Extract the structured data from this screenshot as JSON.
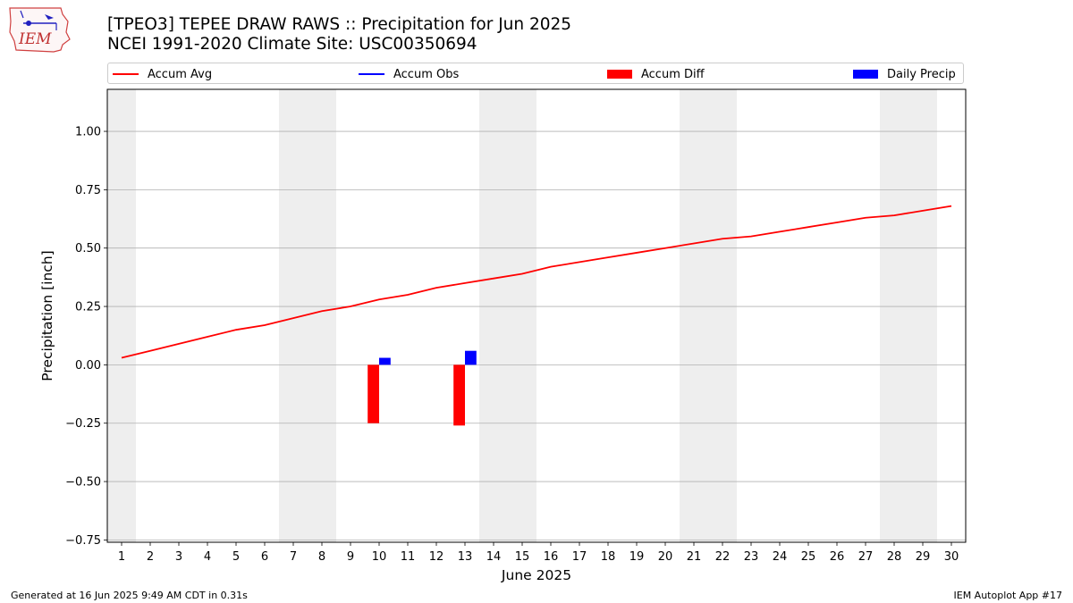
{
  "header": {
    "title": "[TPEO3] TEPEE DRAW RAWS :: Precipitation for Jun 2025",
    "subtitle": "NCEI 1991-2020 Climate Site: USC00350694"
  },
  "logo": {
    "text": "IEM",
    "icon": "iem-iowa-logo"
  },
  "legend": {
    "items": [
      {
        "label": "Accum Avg",
        "kind": "line",
        "color": "#ff0000"
      },
      {
        "label": "Accum Obs",
        "kind": "line",
        "color": "#0000ff"
      },
      {
        "label": "Accum Diff",
        "kind": "patch",
        "color": "#ff0000"
      },
      {
        "label": "Daily Precip",
        "kind": "patch",
        "color": "#0000ff"
      }
    ],
    "placement": "top"
  },
  "footer": {
    "left": "Generated at 16 Jun 2025 9:49 AM CDT in 0.31s",
    "right": "IEM Autoplot App #17"
  },
  "colors": {
    "avg": "#ff0000",
    "obs": "#0000ff",
    "diff": "#ff0000",
    "daily": "#0000ff",
    "weekend": "#eeeeee",
    "grid": "#b0b0b0"
  },
  "chart_data": {
    "type": "line",
    "title": "[TPEO3] TEPEE DRAW RAWS :: Precipitation for Jun 2025",
    "subtitle": "NCEI 1991-2020 Climate Site: USC00350694",
    "xlabel": "June 2025",
    "ylabel": "Precipitation [inch]",
    "x": [
      1,
      2,
      3,
      4,
      5,
      6,
      7,
      8,
      9,
      10,
      11,
      12,
      13,
      14,
      15,
      16,
      17,
      18,
      19,
      20,
      21,
      22,
      23,
      24,
      25,
      26,
      27,
      28,
      29,
      30
    ],
    "xlim": [
      0.5,
      30.5
    ],
    "ylim": [
      -0.76,
      1.18
    ],
    "yticks": [
      -0.75,
      -0.5,
      -0.25,
      0.0,
      0.25,
      0.5,
      0.75,
      1.0
    ],
    "ytick_labels": [
      "−0.75",
      "−0.50",
      "−0.25",
      "0.00",
      "0.25",
      "0.50",
      "0.75",
      "1.00"
    ],
    "grid": "horizontal",
    "weekend_days": [
      1,
      7,
      8,
      14,
      15,
      21,
      22,
      28,
      29
    ],
    "series": [
      {
        "name": "Accum Avg",
        "type": "line",
        "color": "#ff0000",
        "x": [
          1,
          2,
          3,
          4,
          5,
          6,
          7,
          8,
          9,
          10,
          11,
          12,
          13,
          14,
          15,
          16,
          17,
          18,
          19,
          20,
          21,
          22,
          23,
          24,
          25,
          26,
          27,
          28,
          29,
          30
        ],
        "values": [
          0.03,
          0.06,
          0.09,
          0.12,
          0.15,
          0.17,
          0.2,
          0.23,
          0.25,
          0.28,
          0.3,
          0.33,
          0.35,
          0.37,
          0.39,
          0.42,
          0.44,
          0.46,
          0.48,
          0.5,
          0.52,
          0.54,
          0.55,
          0.57,
          0.59,
          0.61,
          0.63,
          0.64,
          0.66,
          0.68
        ]
      },
      {
        "name": "Accum Diff",
        "type": "bar",
        "color": "#ff0000",
        "x": [
          10,
          13
        ],
        "values": [
          -0.25,
          -0.26
        ]
      },
      {
        "name": "Daily Precip",
        "type": "bar",
        "color": "#0000ff",
        "x": [
          10,
          13
        ],
        "values": [
          0.03,
          0.06
        ]
      }
    ]
  }
}
